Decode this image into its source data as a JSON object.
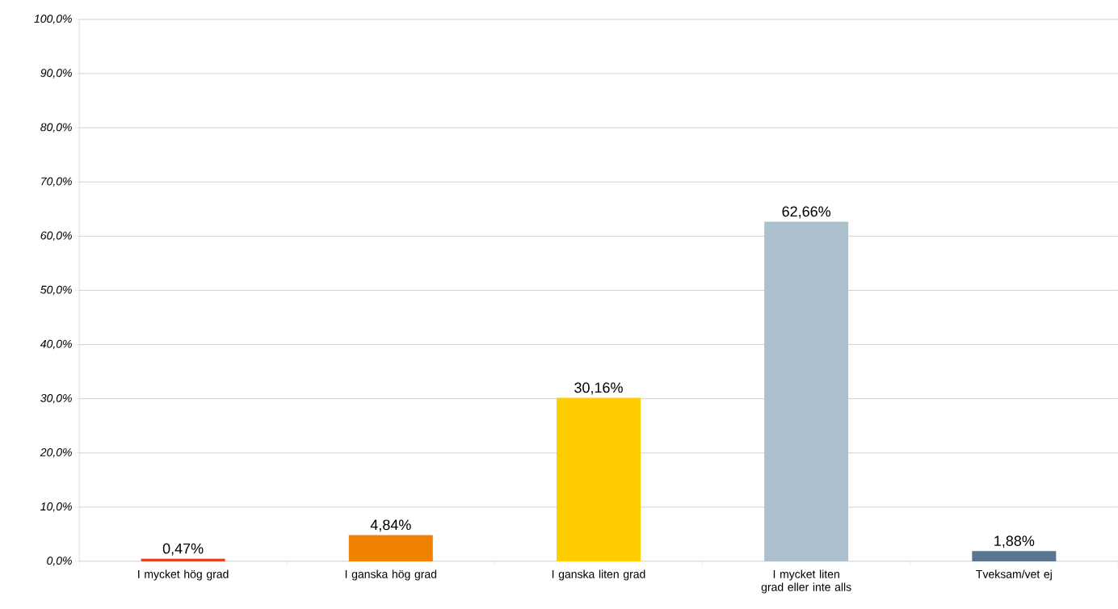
{
  "chart_data": {
    "type": "bar",
    "categories": [
      "I mycket hög grad",
      "I ganska hög grad",
      "I ganska liten grad",
      "I mycket liten grad eller inte alls",
      "Tveksam/vet ej"
    ],
    "values": [
      0.47,
      4.84,
      30.16,
      62.66,
      1.88
    ],
    "value_labels": [
      "0,47%",
      "4,84%",
      "30,16%",
      "62,66%",
      "1,88%"
    ],
    "colors": [
      "#e2401e",
      "#ef8200",
      "#ffcc00",
      "#adc0ce",
      "#5a7690"
    ],
    "ylim": [
      0,
      100
    ],
    "yticks": [
      {
        "value": 0,
        "label": "0,0%"
      },
      {
        "value": 10,
        "label": "10,0%"
      },
      {
        "value": 20,
        "label": "20,0%"
      },
      {
        "value": 30,
        "label": "30,0%"
      },
      {
        "value": 40,
        "label": "40,0%"
      },
      {
        "value": 50,
        "label": "50,0%"
      },
      {
        "value": 60,
        "label": "60,0%"
      },
      {
        "value": 70,
        "label": "70,0%"
      },
      {
        "value": 80,
        "label": "80,0%"
      },
      {
        "value": 90,
        "label": "90,0%"
      },
      {
        "value": 100,
        "label": "100,0%"
      }
    ],
    "grid": "y"
  }
}
